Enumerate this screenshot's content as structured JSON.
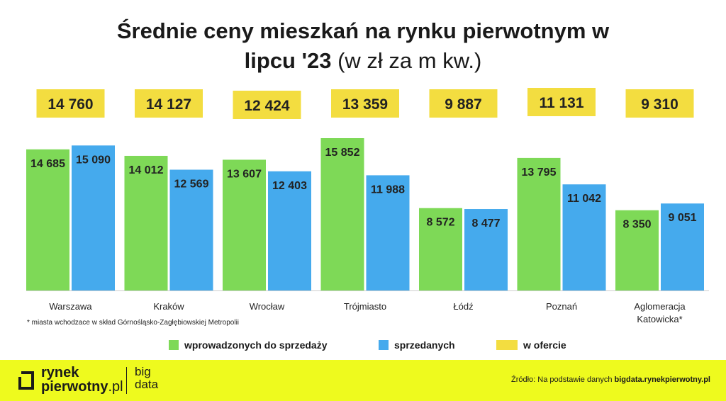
{
  "title_line1": "Średnie ceny mieszkań na rynku pierwotnym w",
  "title_line2_bold": "lipcu '23",
  "title_line2_light": "(w zł za m kw.)",
  "footnote": "* miasta wchodzace w skład Górnośląsko-Zagłębiowskiej Metropolii",
  "legend": {
    "green": "wprowadzonych do sprzedaży",
    "blue": "sprzedanych",
    "yellow": "w ofercie"
  },
  "colors": {
    "green": "#7ed957",
    "blue": "#45aaed",
    "yellow": "#f3dd40"
  },
  "footer": {
    "logo_line1": "rynek",
    "logo_line2_main": "pierwotny",
    "logo_line2_suffix": ".pl",
    "big_line1": "big",
    "big_line2": "data",
    "source_prefix": "Źródło: Na podstawie danych",
    "source_link": "bigdata.rynekpierwotny.pl"
  },
  "chart_data": {
    "type": "bar",
    "categories": [
      "Warszawa",
      "Kraków",
      "Wrocław",
      "Trójmiasto",
      "Łódź",
      "Poznań",
      "Aglomeracja Katowicka*"
    ],
    "series": [
      {
        "name": "wprowadzonych do sprzedaży",
        "values": [
          14685,
          14012,
          13607,
          15852,
          8572,
          13795,
          8350
        ],
        "labels": [
          "14 685",
          "14 012",
          "13 607",
          "15 852",
          "8 572",
          "13 795",
          "8 350"
        ]
      },
      {
        "name": "sprzedanych",
        "values": [
          15090,
          12569,
          12403,
          11988,
          8477,
          11042,
          9051
        ],
        "labels": [
          "15 090",
          "12 569",
          "12 403",
          "11 988",
          "8 477",
          "11 042",
          "9 051"
        ]
      },
      {
        "name": "w ofercie",
        "values": [
          14760,
          14127,
          12424,
          13359,
          9887,
          11131,
          9310
        ],
        "labels": [
          "14 760",
          "14 127",
          "12 424",
          "13 359",
          "9 887",
          "11 131",
          "9 310"
        ]
      }
    ],
    "ylim": [
      0,
      16000
    ],
    "grid": false,
    "legend_position": "bottom"
  }
}
